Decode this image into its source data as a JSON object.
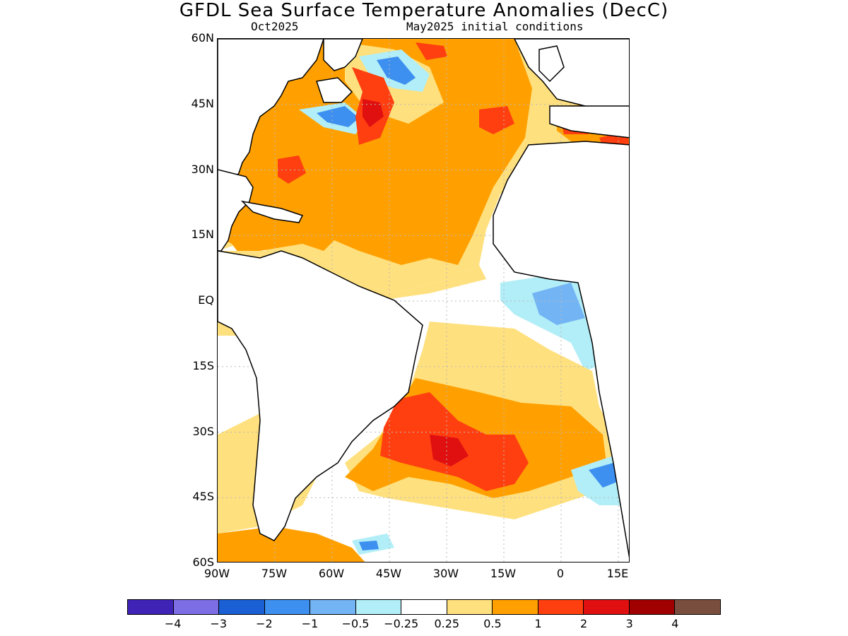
{
  "header": {
    "title": "GFDL Sea Surface Temperature Anomalies (DecC)",
    "valid_month": "Oct2025",
    "init_conditions": "May2025 initial conditions"
  },
  "map": {
    "lat_labels": [
      "60N",
      "45N",
      "30N",
      "15N",
      "EQ",
      "15S",
      "30S",
      "45S",
      "60S"
    ],
    "lon_labels": [
      "90W",
      "75W",
      "60W",
      "45W",
      "30W",
      "15W",
      "0",
      "15E"
    ]
  },
  "colorbar": {
    "colors": [
      "#3f22b6",
      "#7d6ee6",
      "#1a5fd4",
      "#3d8ff0",
      "#73b4f5",
      "#b2eef7",
      "#ffffff",
      "#ffe07e",
      "#ffa000",
      "#ff3f10",
      "#e01010",
      "#a00000",
      "#7a4e3e"
    ],
    "labels": [
      "−4",
      "−3",
      "−2",
      "−1",
      "−0.5",
      "−0.25",
      "0.25",
      "0.5",
      "1",
      "2",
      "3",
      "4"
    ]
  },
  "anomaly_colors": {
    "light_warm": "#ffe07e",
    "warm": "#ffa000",
    "hot": "#ff3f10",
    "very_hot": "#e01010",
    "light_cool": "#b2eef7",
    "cool": "#73b4f5",
    "cold": "#3d8ff0",
    "very_cold": "#1a5fd4",
    "brown": "#7a4e3e",
    "gridline": "#b8b8b8",
    "coast": "#000000"
  }
}
